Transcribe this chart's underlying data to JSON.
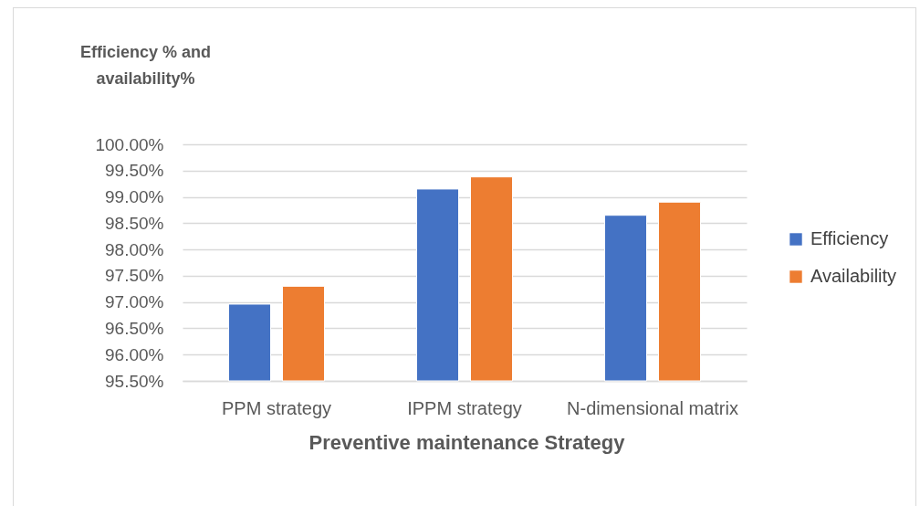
{
  "chart_data": {
    "type": "bar",
    "ylabel": "Efficiency % and availability%",
    "xlabel": "Preventive maintenance Strategy",
    "categories": [
      "PPM strategy",
      "IPPM strategy",
      "N-dimensional matrix"
    ],
    "series": [
      {
        "name": "Efficiency",
        "color": "#4472c4",
        "values": [
          96.96,
          99.15,
          98.65
        ]
      },
      {
        "name": "Availability",
        "color": "#ed7d31",
        "values": [
          97.3,
          99.38,
          98.9
        ]
      }
    ],
    "ylim": [
      95.5,
      100
    ],
    "yticks": [
      {
        "value": 95.5,
        "label": "95.50%"
      },
      {
        "value": 96,
        "label": "96.00%"
      },
      {
        "value": 96.5,
        "label": "96.50%"
      },
      {
        "value": 97,
        "label": "97.00%"
      },
      {
        "value": 97.5,
        "label": "97.50%"
      },
      {
        "value": 98,
        "label": "98.00%"
      },
      {
        "value": 98.5,
        "label": "98.50%"
      },
      {
        "value": 99,
        "label": "99.00%"
      },
      {
        "value": 99.5,
        "label": "99.50%"
      },
      {
        "value": 100,
        "label": "100.00%"
      }
    ],
    "grid": "y",
    "legend": "right"
  }
}
